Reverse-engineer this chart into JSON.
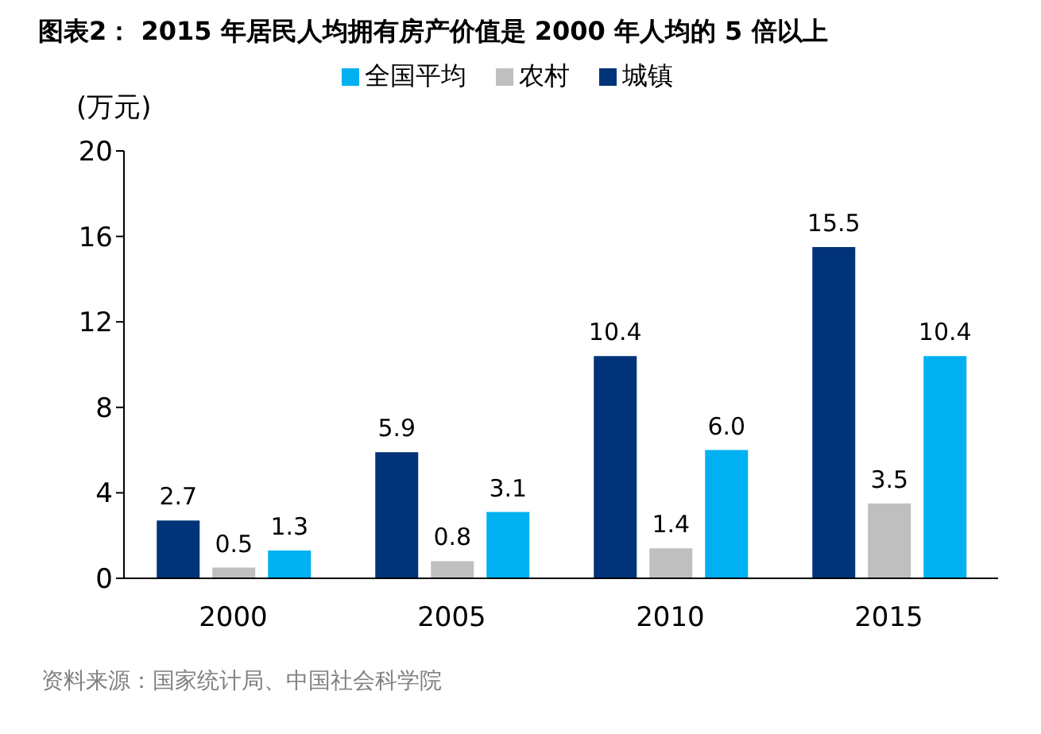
{
  "chart_data": {
    "type": "bar",
    "title": "图表2： 2015 年居民人均拥有房产价值是 2000 年人均的 5 倍以上",
    "ylabel": "(万元)",
    "categories": [
      "2000",
      "2005",
      "2010",
      "2015"
    ],
    "series": [
      {
        "name": "城镇",
        "color": "#003378",
        "values": [
          2.7,
          5.9,
          10.4,
          15.5
        ],
        "value_labels": [
          "2.7",
          "5.9",
          "10.4",
          "15.5"
        ]
      },
      {
        "name": "农村",
        "color": "#bfbfbf",
        "values": [
          0.5,
          0.8,
          1.4,
          3.5
        ],
        "value_labels": [
          "0.5",
          "0.8",
          "1.4",
          "3.5"
        ]
      },
      {
        "name": "全国平均",
        "color": "#00b0f0",
        "values": [
          1.3,
          3.1,
          6.0,
          10.4
        ],
        "value_labels": [
          "1.3",
          "3.1",
          "6.0",
          "10.4"
        ]
      }
    ],
    "ylim": [
      0,
      20
    ],
    "yticks": [
      0,
      4,
      8,
      12,
      16,
      20
    ],
    "grid": false,
    "legend": "top",
    "annotations": [
      "资料来源：国家统计局、中国社会科学院"
    ]
  }
}
